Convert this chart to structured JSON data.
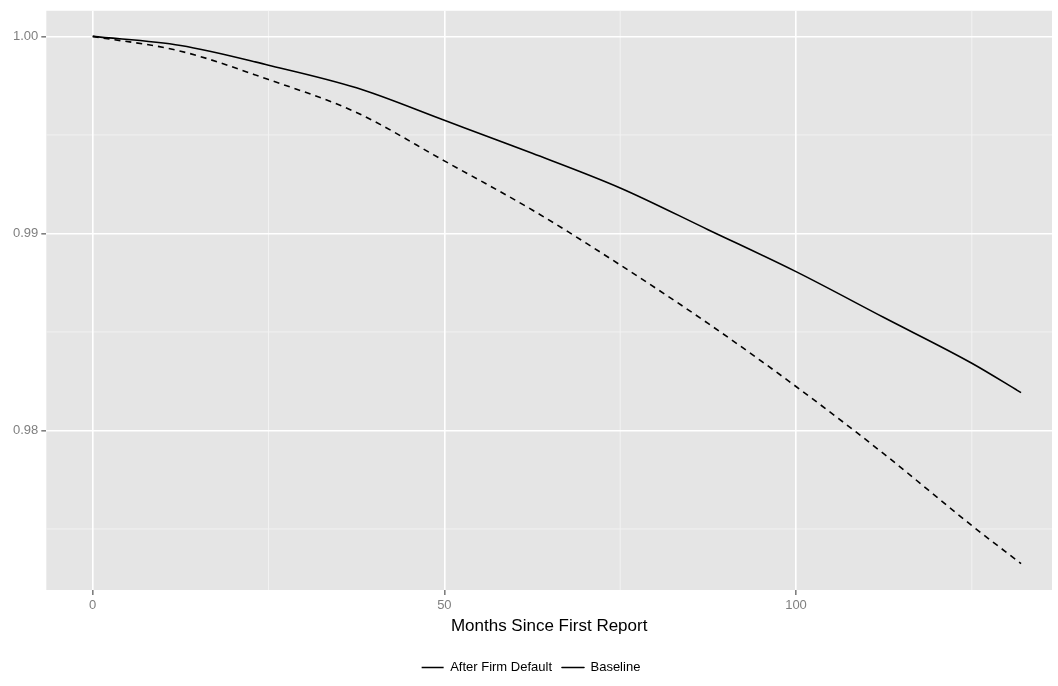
{
  "chart_data": {
    "type": "line",
    "xlabel": "Months Since First Report",
    "xlim": [
      -6.6,
      136.4
    ],
    "xticks": [
      0,
      50,
      100
    ],
    "ylim": [
      0.9719,
      1.0013
    ],
    "yticks": [
      {
        "value": 0.98,
        "label": "0.98"
      },
      {
        "value": 0.99,
        "label": "0.99"
      },
      {
        "value": 1,
        "label": "1.00"
      }
    ],
    "grid": true,
    "legend": "bottom",
    "marker": "none",
    "series": [
      {
        "name": "After Firm Default",
        "color": "#000000",
        "line_style": "dashed",
        "x": [
          0,
          12.5,
          25,
          37.5,
          50,
          62.5,
          75,
          87.5,
          100,
          112.5,
          125,
          132
        ],
        "values": [
          1,
          0.99925,
          0.99781,
          0.99614,
          0.99368,
          0.99119,
          0.9884,
          0.98543,
          0.98223,
          0.97881,
          0.97517,
          0.97324
        ]
      },
      {
        "name": "Baseline",
        "color": "#000000",
        "line_style": "solid",
        "x": [
          0,
          12.5,
          25,
          37.5,
          50,
          62.5,
          75,
          87.5,
          100,
          112.5,
          125,
          132
        ],
        "values": [
          1,
          0.99954,
          0.99854,
          0.99739,
          0.99574,
          0.99407,
          0.99231,
          0.99019,
          0.98806,
          0.98573,
          0.98341,
          0.98192
        ]
      }
    ]
  }
}
